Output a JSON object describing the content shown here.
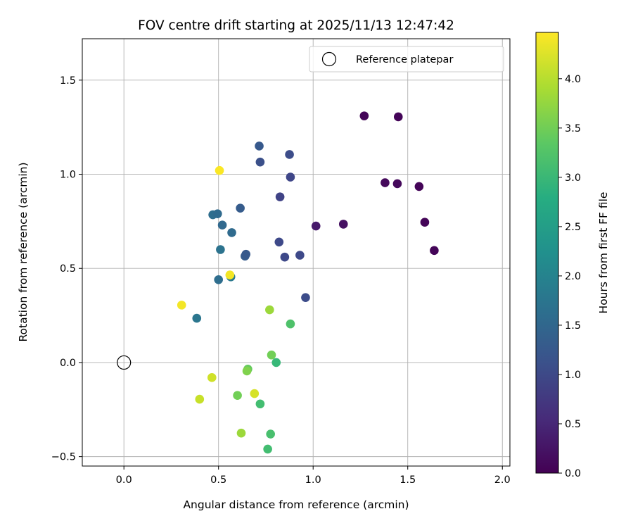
{
  "chart_data": {
    "type": "scatter",
    "title": "FOV centre drift starting at 2025/11/13 12:47:42",
    "xlabel": "Angular distance from reference (arcmin)",
    "ylabel": "Rotation from reference (arcmin)",
    "xlim": [
      -0.22,
      2.04
    ],
    "ylim": [
      -0.55,
      1.72
    ],
    "xticks": [
      0.0,
      0.5,
      1.0,
      1.5,
      2.0
    ],
    "xtick_labels": [
      "0.0",
      "0.5",
      "1.0",
      "1.5",
      "2.0"
    ],
    "yticks": [
      -0.5,
      0.0,
      0.5,
      1.0,
      1.5
    ],
    "ytick_labels": [
      "−0.5",
      "0.0",
      "0.5",
      "1.0",
      "1.5"
    ],
    "grid": true,
    "colormap": "viridis",
    "colorbar": {
      "label": "Hours from first FF file",
      "range": [
        0.0,
        4.47
      ],
      "ticks": [
        0.0,
        0.5,
        1.0,
        1.5,
        2.0,
        2.5,
        3.0,
        3.5,
        4.0
      ],
      "tick_labels": [
        "0.0",
        "0.5",
        "1.0",
        "1.5",
        "2.0",
        "2.5",
        "3.0",
        "3.5",
        "4.0"
      ]
    },
    "legend": {
      "position": "top-right",
      "entries": [
        "Reference platepar"
      ]
    },
    "reference_point": {
      "x": 0.0,
      "y": 0.0,
      "label": "Reference platepar"
    },
    "points": [
      {
        "x": 1.27,
        "y": 1.31,
        "h": 0.05
      },
      {
        "x": 1.45,
        "y": 1.305,
        "h": 0.05
      },
      {
        "x": 1.38,
        "y": 0.955,
        "h": 0.1
      },
      {
        "x": 1.445,
        "y": 0.95,
        "h": 0.1
      },
      {
        "x": 1.56,
        "y": 0.935,
        "h": 0.05
      },
      {
        "x": 1.59,
        "y": 0.745,
        "h": 0.05
      },
      {
        "x": 1.64,
        "y": 0.595,
        "h": 0.05
      },
      {
        "x": 1.16,
        "y": 0.735,
        "h": 0.2
      },
      {
        "x": 1.015,
        "y": 0.725,
        "h": 0.3
      },
      {
        "x": 0.715,
        "y": 1.15,
        "h": 1.25
      },
      {
        "x": 0.875,
        "y": 1.105,
        "h": 1.05
      },
      {
        "x": 0.72,
        "y": 1.065,
        "h": 1.1
      },
      {
        "x": 0.88,
        "y": 0.985,
        "h": 0.95
      },
      {
        "x": 0.825,
        "y": 0.88,
        "h": 0.9
      },
      {
        "x": 0.615,
        "y": 0.82,
        "h": 1.3
      },
      {
        "x": 0.82,
        "y": 0.64,
        "h": 1.0
      },
      {
        "x": 0.85,
        "y": 0.56,
        "h": 1.0
      },
      {
        "x": 0.93,
        "y": 0.57,
        "h": 1.0
      },
      {
        "x": 0.96,
        "y": 0.345,
        "h": 1.05
      },
      {
        "x": 0.47,
        "y": 0.785,
        "h": 1.6
      },
      {
        "x": 0.495,
        "y": 0.79,
        "h": 1.55
      },
      {
        "x": 0.52,
        "y": 0.73,
        "h": 1.5
      },
      {
        "x": 0.57,
        "y": 0.69,
        "h": 1.55
      },
      {
        "x": 0.51,
        "y": 0.6,
        "h": 1.7
      },
      {
        "x": 0.64,
        "y": 0.565,
        "h": 1.3
      },
      {
        "x": 0.645,
        "y": 0.575,
        "h": 1.25
      },
      {
        "x": 0.5,
        "y": 0.44,
        "h": 1.6
      },
      {
        "x": 0.565,
        "y": 0.455,
        "h": 1.8
      },
      {
        "x": 0.385,
        "y": 0.235,
        "h": 1.75
      },
      {
        "x": 0.505,
        "y": 1.02,
        "h": 4.45
      },
      {
        "x": 0.56,
        "y": 0.465,
        "h": 4.4
      },
      {
        "x": 0.305,
        "y": 0.305,
        "h": 4.4
      },
      {
        "x": 0.77,
        "y": 0.28,
        "h": 3.8
      },
      {
        "x": 0.88,
        "y": 0.205,
        "h": 3.2
      },
      {
        "x": 0.78,
        "y": 0.04,
        "h": 3.5
      },
      {
        "x": 0.805,
        "y": 0.0,
        "h": 3.0
      },
      {
        "x": 0.655,
        "y": -0.035,
        "h": 3.4
      },
      {
        "x": 0.65,
        "y": -0.045,
        "h": 3.6
      },
      {
        "x": 0.465,
        "y": -0.08,
        "h": 4.15
      },
      {
        "x": 0.69,
        "y": -0.165,
        "h": 4.2
      },
      {
        "x": 0.4,
        "y": -0.195,
        "h": 4.1
      },
      {
        "x": 0.6,
        "y": -0.175,
        "h": 3.5
      },
      {
        "x": 0.72,
        "y": -0.22,
        "h": 3.1
      },
      {
        "x": 0.62,
        "y": -0.375,
        "h": 3.8
      },
      {
        "x": 0.775,
        "y": -0.38,
        "h": 3.15
      },
      {
        "x": 0.76,
        "y": -0.46,
        "h": 3.1
      }
    ]
  }
}
